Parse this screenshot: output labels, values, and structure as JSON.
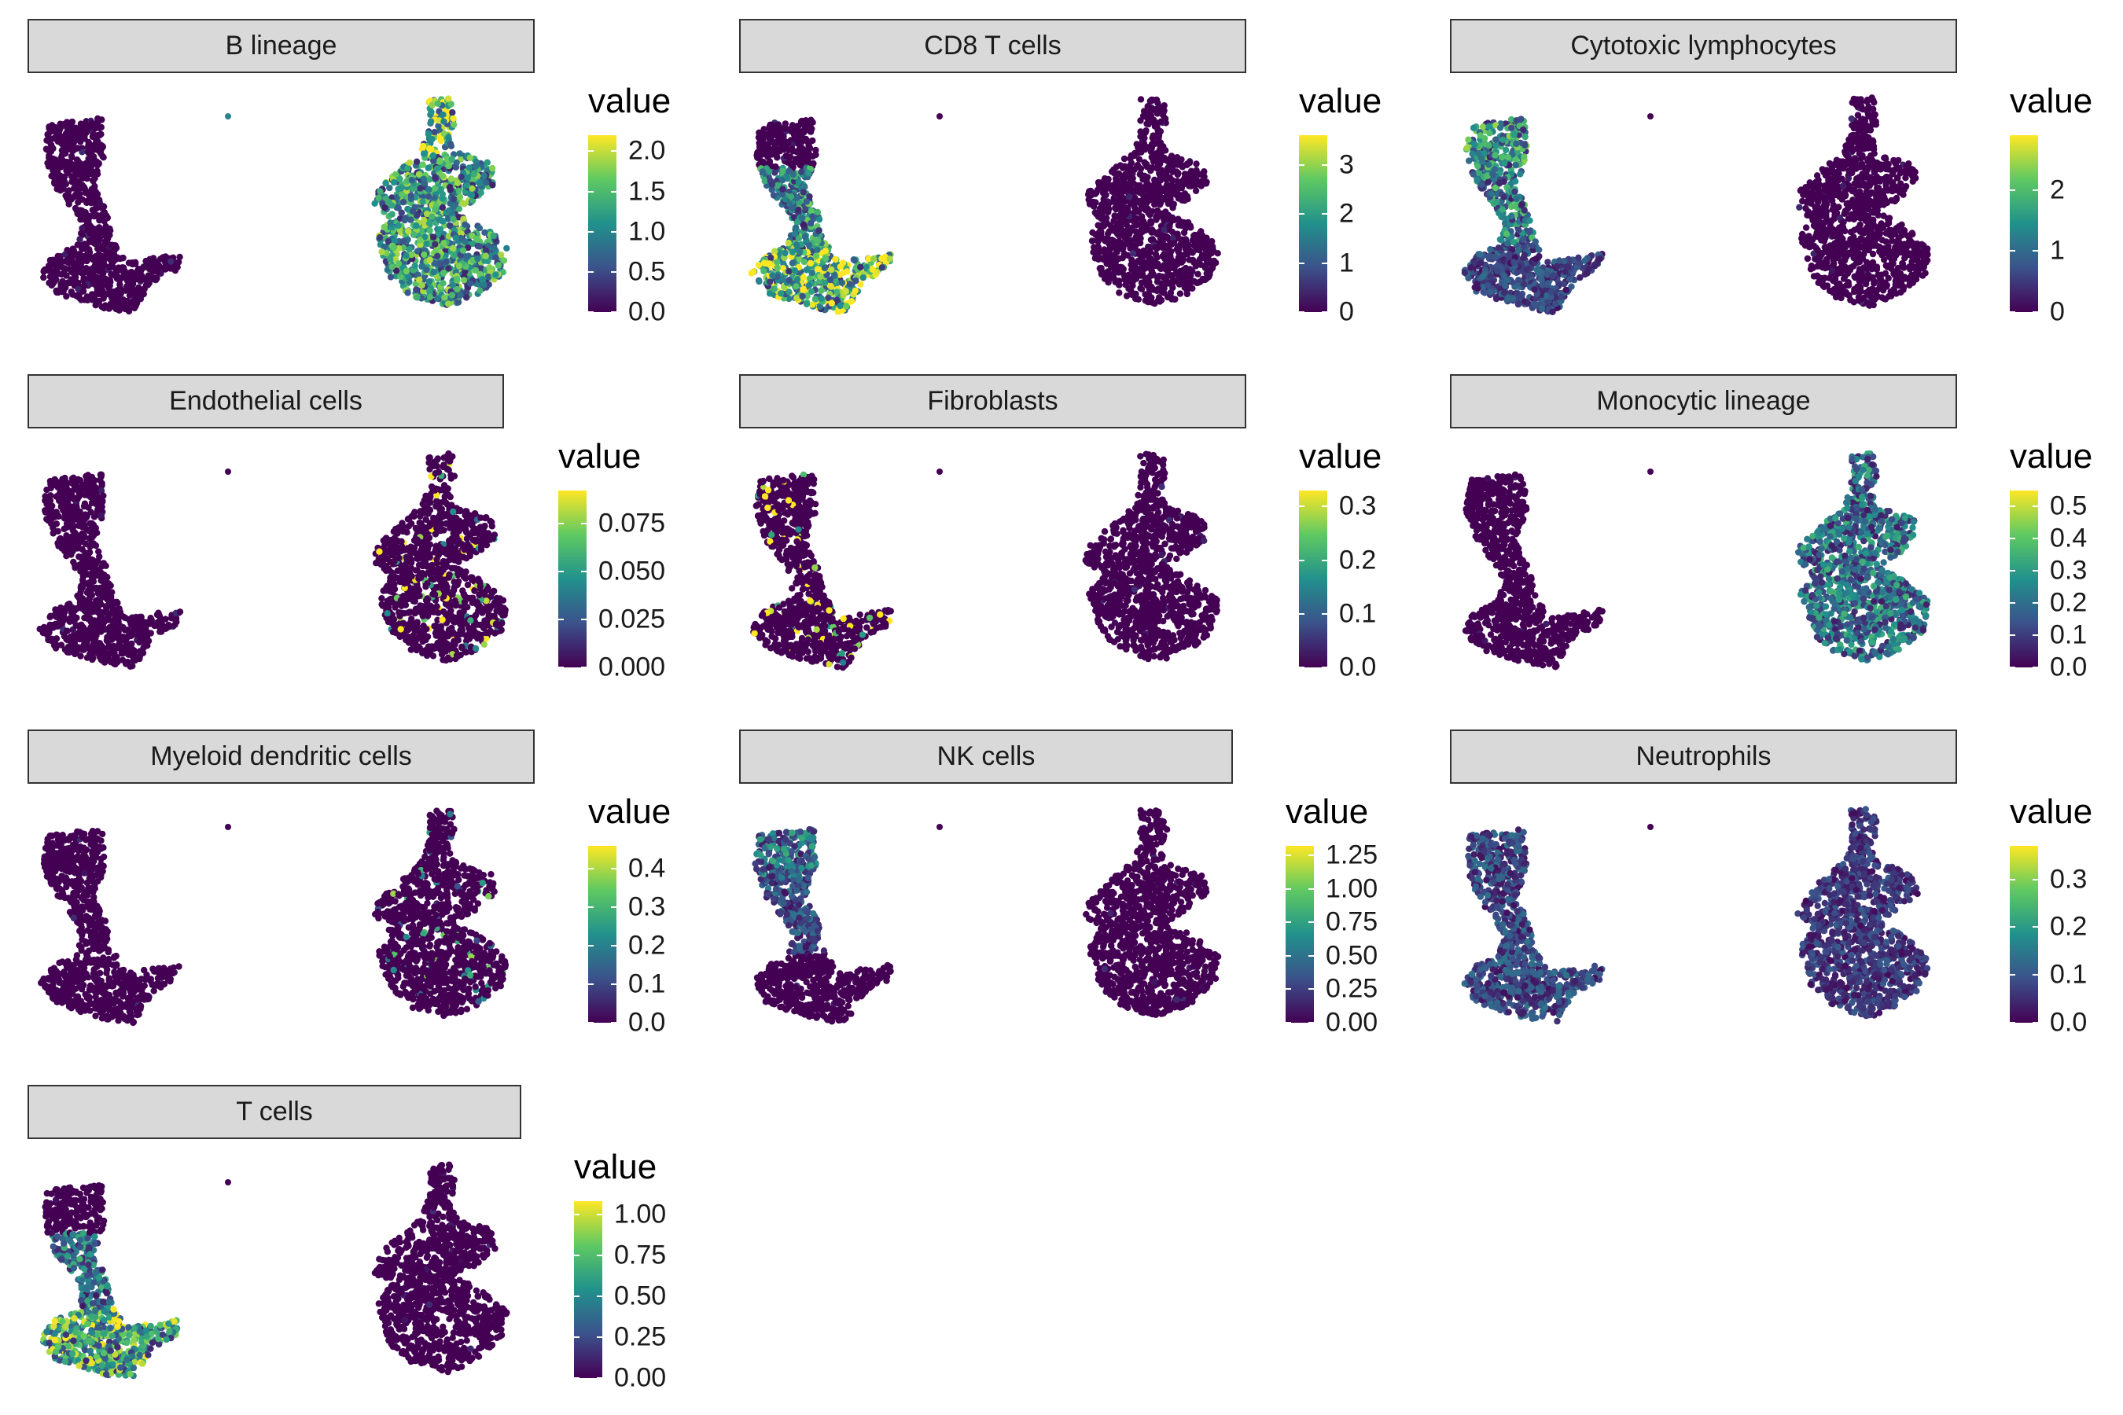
{
  "colormap": [
    "#440154",
    "#3b528b",
    "#21918c",
    "#5ec962",
    "#fde725"
  ],
  "colors": {
    "strip_fill": "#d9d9d9",
    "strip_border": "#333333",
    "background": "#ffffff"
  },
  "chart_data": [
    {
      "type": "scatter",
      "title": "B lineage",
      "legend_title": "value",
      "scale_max": 2.2,
      "ticks": [
        {
          "value": 0.0,
          "label": "0.0"
        },
        {
          "value": 0.5,
          "label": "0.5"
        },
        {
          "value": 1.0,
          "label": "1.0"
        },
        {
          "value": 1.5,
          "label": "1.5"
        },
        {
          "value": 2.0,
          "label": "2.0"
        }
      ],
      "high_regions": [
        {
          "cluster": "right",
          "part": "all",
          "mean": 1.1
        },
        {
          "cluster": "right",
          "part": "top",
          "mean": 1.6
        }
      ]
    },
    {
      "type": "scatter",
      "title": "CD8 T cells",
      "legend_title": "value",
      "scale_max": 3.6,
      "ticks": [
        {
          "value": 0,
          "label": "0"
        },
        {
          "value": 1,
          "label": "1"
        },
        {
          "value": 2,
          "label": "2"
        },
        {
          "value": 3,
          "label": "3"
        }
      ],
      "high_regions": [
        {
          "cluster": "left",
          "part": "bottom",
          "mean": 2.3
        },
        {
          "cluster": "left",
          "part": "middle",
          "mean": 1.6
        }
      ]
    },
    {
      "type": "scatter",
      "title": "Cytotoxic lymphocytes",
      "legend_title": "value",
      "scale_max": 2.9,
      "ticks": [
        {
          "value": 0,
          "label": "0"
        },
        {
          "value": 1,
          "label": "1"
        },
        {
          "value": 2,
          "label": "2"
        }
      ],
      "high_regions": [
        {
          "cluster": "left",
          "part": "top",
          "mean": 1.4
        },
        {
          "cluster": "left",
          "part": "middle",
          "mean": 1.2
        },
        {
          "cluster": "left",
          "part": "bottom",
          "mean": 0.6
        }
      ]
    },
    {
      "type": "scatter",
      "title": "Endothelial cells",
      "legend_title": "value",
      "scale_max": 0.092,
      "ticks": [
        {
          "value": 0.0,
          "label": "0.000"
        },
        {
          "value": 0.025,
          "label": "0.025"
        },
        {
          "value": 0.05,
          "label": "0.050"
        },
        {
          "value": 0.075,
          "label": "0.075"
        }
      ],
      "high_regions": [
        {
          "cluster": "right",
          "part": "sparse",
          "mean": 0.03
        }
      ]
    },
    {
      "type": "scatter",
      "title": "Fibroblasts",
      "legend_title": "value",
      "scale_max": 0.33,
      "ticks": [
        {
          "value": 0.0,
          "label": "0.0"
        },
        {
          "value": 0.1,
          "label": "0.1"
        },
        {
          "value": 0.2,
          "label": "0.2"
        },
        {
          "value": 0.3,
          "label": "0.3"
        }
      ],
      "high_regions": [
        {
          "cluster": "left",
          "part": "sparse",
          "mean": 0.12
        }
      ]
    },
    {
      "type": "scatter",
      "title": "Monocytic lineage",
      "legend_title": "value",
      "scale_max": 0.55,
      "ticks": [
        {
          "value": 0.0,
          "label": "0.0"
        },
        {
          "value": 0.1,
          "label": "0.1"
        },
        {
          "value": 0.2,
          "label": "0.2"
        },
        {
          "value": 0.3,
          "label": "0.3"
        },
        {
          "value": 0.4,
          "label": "0.4"
        },
        {
          "value": 0.5,
          "label": "0.5"
        }
      ],
      "high_regions": [
        {
          "cluster": "right",
          "part": "all",
          "mean": 0.2
        }
      ]
    },
    {
      "type": "scatter",
      "title": "Myeloid dendritic cells",
      "legend_title": "value",
      "scale_max": 0.46,
      "ticks": [
        {
          "value": 0.0,
          "label": "0.0"
        },
        {
          "value": 0.1,
          "label": "0.1"
        },
        {
          "value": 0.2,
          "label": "0.2"
        },
        {
          "value": 0.3,
          "label": "0.3"
        },
        {
          "value": 0.4,
          "label": "0.4"
        }
      ],
      "high_regions": [
        {
          "cluster": "right",
          "part": "sparse",
          "mean": 0.1
        }
      ]
    },
    {
      "type": "scatter",
      "title": "NK cells",
      "legend_title": "value",
      "scale_max": 1.32,
      "ticks": [
        {
          "value": 0.0,
          "label": "0.00"
        },
        {
          "value": 0.25,
          "label": "0.25"
        },
        {
          "value": 0.5,
          "label": "0.50"
        },
        {
          "value": 0.75,
          "label": "0.75"
        },
        {
          "value": 1.0,
          "label": "1.00"
        },
        {
          "value": 1.25,
          "label": "1.25"
        }
      ],
      "high_regions": [
        {
          "cluster": "left",
          "part": "top",
          "mean": 0.45
        },
        {
          "cluster": "left",
          "part": "middle",
          "mean": 0.3
        }
      ]
    },
    {
      "type": "scatter",
      "title": "Neutrophils",
      "legend_title": "value",
      "scale_max": 0.37,
      "ticks": [
        {
          "value": 0.0,
          "label": "0.0"
        },
        {
          "value": 0.1,
          "label": "0.1"
        },
        {
          "value": 0.2,
          "label": "0.2"
        },
        {
          "value": 0.3,
          "label": "0.3"
        }
      ],
      "high_regions": [
        {
          "cluster": "left",
          "part": "all",
          "mean": 0.08
        },
        {
          "cluster": "right",
          "part": "all",
          "mean": 0.06
        }
      ]
    },
    {
      "type": "scatter",
      "title": "T cells",
      "legend_title": "value",
      "scale_max": 1.08,
      "ticks": [
        {
          "value": 0.0,
          "label": "0.00"
        },
        {
          "value": 0.25,
          "label": "0.25"
        },
        {
          "value": 0.5,
          "label": "0.50"
        },
        {
          "value": 0.75,
          "label": "0.75"
        },
        {
          "value": 1.0,
          "label": "1.00"
        }
      ],
      "high_regions": [
        {
          "cluster": "left",
          "part": "bottom",
          "mean": 0.62
        },
        {
          "cluster": "left",
          "part": "middle",
          "mean": 0.4
        }
      ]
    }
  ]
}
